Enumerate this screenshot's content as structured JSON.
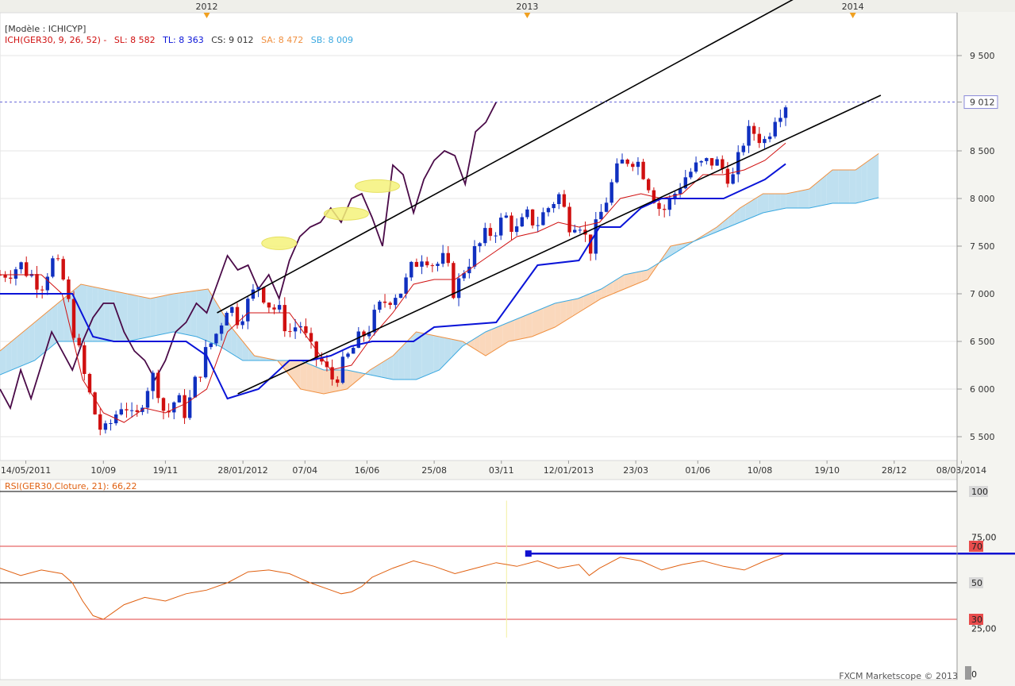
{
  "legend": {
    "model": "[Modèle : ICHICYP]",
    "ich": "ICH(GER30, 9, 26, 52) -",
    "sl": "SL: 8 582",
    "tl": "TL: 8 363",
    "cs": "CS: 9 012",
    "sa": "SA: 8 472",
    "sb": "SB: 8 009"
  },
  "colors": {
    "bull": "#1030c0",
    "bear": "#d01010",
    "tenkan": "#d01010",
    "kijun": "#0a14d8",
    "chikou": "#4a0a48",
    "senkou_a": "#f09040",
    "senkou_b": "#3aa8e0",
    "cloud_bull": "#bfe0f0",
    "cloud_bear": "#fad8bc",
    "rsi": "#e06010"
  },
  "footer": "FXCM Marketscope © 2013",
  "chart_data": [
    {
      "type": "candlestick",
      "title": "",
      "instrument": "GER30",
      "indicator": "Ichimoku (9, 26, 52)",
      "x_top_labels": [
        "2012",
        "2013",
        "2014"
      ],
      "x_tick_labels": [
        "14/05/2011",
        "10/09",
        "19/11",
        "28/01/2012",
        "07/04",
        "16/06",
        "25/08",
        "03/11",
        "12/01/2013",
        "23/03",
        "01/06",
        "10/08",
        "19/10",
        "28/12",
        "08/03/2014"
      ],
      "y_tick_labels": [
        "9 500",
        "9 012",
        "8 500",
        "8 000",
        "7 500",
        "7 000",
        "6 500",
        "6 000",
        "5 500"
      ],
      "y_range": [
        5250,
        9950
      ],
      "last_price": 9012,
      "close_path": [
        [
          0,
          7200
        ],
        [
          2,
          7300
        ],
        [
          4,
          7100
        ],
        [
          5,
          7350
        ],
        [
          6,
          7200
        ],
        [
          7,
          6700
        ],
        [
          8,
          6200
        ],
        [
          9,
          5800
        ],
        [
          10,
          5500
        ],
        [
          11,
          5700
        ],
        [
          12,
          5900
        ],
        [
          13,
          5600
        ],
        [
          14,
          6000
        ],
        [
          15,
          6150
        ],
        [
          16,
          5700
        ],
        [
          17,
          5900
        ],
        [
          18,
          5750
        ],
        [
          19,
          6100
        ],
        [
          20,
          6400
        ],
        [
          21,
          6600
        ],
        [
          22,
          6900
        ],
        [
          23,
          6750
        ],
        [
          24,
          6900
        ],
        [
          25,
          7100
        ],
        [
          26,
          6900
        ],
        [
          27,
          6800
        ],
        [
          28,
          6600
        ],
        [
          29,
          6700
        ],
        [
          30,
          6400
        ],
        [
          31,
          6300
        ],
        [
          32,
          6100
        ],
        [
          33,
          6200
        ],
        [
          34,
          6400
        ],
        [
          35,
          6550
        ],
        [
          36,
          6700
        ],
        [
          37,
          6900
        ],
        [
          38,
          7000
        ],
        [
          39,
          7050
        ],
        [
          40,
          7300
        ],
        [
          41,
          7450
        ],
        [
          42,
          7300
        ],
        [
          43,
          7350
        ],
        [
          44,
          7000
        ],
        [
          45,
          7300
        ],
        [
          46,
          7450
        ],
        [
          47,
          7600
        ],
        [
          48,
          7700
        ],
        [
          49,
          7800
        ],
        [
          50,
          7650
        ],
        [
          51,
          7800
        ],
        [
          52,
          7750
        ],
        [
          53,
          7900
        ],
        [
          54,
          8050
        ],
        [
          55,
          7750
        ],
        [
          56,
          7800
        ],
        [
          57,
          7450
        ],
        [
          58,
          7800
        ],
        [
          59,
          8100
        ],
        [
          60,
          8350
        ],
        [
          61,
          8450
        ],
        [
          62,
          8350
        ],
        [
          63,
          8100
        ],
        [
          64,
          7850
        ],
        [
          65,
          8000
        ],
        [
          66,
          8200
        ],
        [
          67,
          8300
        ],
        [
          68,
          8350
        ],
        [
          69,
          8400
        ],
        [
          70,
          8300
        ],
        [
          71,
          8200
        ],
        [
          72,
          8650
        ],
        [
          73,
          8700
        ],
        [
          74,
          8600
        ],
        [
          75,
          8900
        ],
        [
          76,
          9012
        ]
      ],
      "tenkan_sen": [
        [
          0,
          7200
        ],
        [
          4,
          7200
        ],
        [
          6,
          7000
        ],
        [
          8,
          6100
        ],
        [
          10,
          5750
        ],
        [
          12,
          5650
        ],
        [
          14,
          5800
        ],
        [
          16,
          5750
        ],
        [
          18,
          5850
        ],
        [
          20,
          6000
        ],
        [
          22,
          6600
        ],
        [
          24,
          6800
        ],
        [
          26,
          6800
        ],
        [
          28,
          6800
        ],
        [
          30,
          6500
        ],
        [
          32,
          6200
        ],
        [
          34,
          6250
        ],
        [
          36,
          6550
        ],
        [
          38,
          6800
        ],
        [
          40,
          7100
        ],
        [
          42,
          7150
        ],
        [
          44,
          7150
        ],
        [
          46,
          7300
        ],
        [
          48,
          7450
        ],
        [
          50,
          7600
        ],
        [
          52,
          7650
        ],
        [
          54,
          7750
        ],
        [
          56,
          7700
        ],
        [
          58,
          7750
        ],
        [
          60,
          8000
        ],
        [
          62,
          8050
        ],
        [
          64,
          8000
        ],
        [
          66,
          8050
        ],
        [
          68,
          8250
        ],
        [
          70,
          8250
        ],
        [
          72,
          8300
        ],
        [
          74,
          8400
        ],
        [
          76,
          8582
        ]
      ],
      "kijun_sen": [
        [
          0,
          7000
        ],
        [
          7,
          7000
        ],
        [
          9,
          6550
        ],
        [
          11,
          6500
        ],
        [
          18,
          6500
        ],
        [
          20,
          6350
        ],
        [
          22,
          5900
        ],
        [
          25,
          6000
        ],
        [
          28,
          6300
        ],
        [
          30,
          6300
        ],
        [
          32,
          6350
        ],
        [
          34,
          6450
        ],
        [
          36,
          6500
        ],
        [
          40,
          6500
        ],
        [
          42,
          6650
        ],
        [
          48,
          6700
        ],
        [
          50,
          7000
        ],
        [
          52,
          7300
        ],
        [
          56,
          7350
        ],
        [
          58,
          7700
        ],
        [
          60,
          7700
        ],
        [
          62,
          7900
        ],
        [
          64,
          8000
        ],
        [
          70,
          8000
        ],
        [
          72,
          8100
        ],
        [
          74,
          8200
        ],
        [
          76,
          8363
        ]
      ],
      "chikou_span": [
        [
          0,
          6000
        ],
        [
          1,
          5800
        ],
        [
          2,
          6200
        ],
        [
          3,
          5900
        ],
        [
          5,
          6600
        ],
        [
          6,
          6400
        ],
        [
          7,
          6200
        ],
        [
          8,
          6500
        ],
        [
          9,
          6750
        ],
        [
          10,
          6900
        ],
        [
          11,
          6900
        ],
        [
          12,
          6600
        ],
        [
          13,
          6400
        ],
        [
          14,
          6300
        ],
        [
          15,
          6100
        ],
        [
          16,
          6300
        ],
        [
          17,
          6600
        ],
        [
          18,
          6700
        ],
        [
          19,
          6900
        ],
        [
          20,
          6800
        ],
        [
          21,
          7100
        ],
        [
          22,
          7400
        ],
        [
          23,
          7250
        ],
        [
          24,
          7300
        ],
        [
          25,
          7050
        ],
        [
          26,
          7200
        ],
        [
          27,
          6950
        ],
        [
          28,
          7350
        ],
        [
          29,
          7600
        ],
        [
          30,
          7700
        ],
        [
          31,
          7750
        ],
        [
          32,
          7900
        ],
        [
          33,
          7750
        ],
        [
          34,
          8000
        ],
        [
          35,
          8050
        ],
        [
          36,
          7800
        ],
        [
          37,
          7500
        ],
        [
          38,
          8350
        ],
        [
          39,
          8250
        ],
        [
          40,
          7850
        ],
        [
          41,
          8200
        ],
        [
          42,
          8400
        ],
        [
          43,
          8500
        ],
        [
          44,
          8450
        ],
        [
          45,
          8150
        ],
        [
          46,
          8700
        ],
        [
          47,
          8800
        ],
        [
          48,
          9012
        ]
      ],
      "senkou_span_a": [
        [
          0,
          6400
        ],
        [
          3,
          6700
        ],
        [
          5,
          6900
        ],
        [
          7,
          7100
        ],
        [
          9,
          7050
        ],
        [
          11,
          7000
        ],
        [
          13,
          6950
        ],
        [
          15,
          7000
        ],
        [
          18,
          7050
        ],
        [
          20,
          6650
        ],
        [
          22,
          6350
        ],
        [
          24,
          6300
        ],
        [
          26,
          6000
        ],
        [
          28,
          5950
        ],
        [
          30,
          6000
        ],
        [
          32,
          6200
        ],
        [
          34,
          6350
        ],
        [
          36,
          6600
        ],
        [
          38,
          6550
        ],
        [
          40,
          6500
        ],
        [
          42,
          6350
        ],
        [
          44,
          6500
        ],
        [
          46,
          6550
        ],
        [
          48,
          6650
        ],
        [
          50,
          6800
        ],
        [
          52,
          6950
        ],
        [
          54,
          7050
        ],
        [
          56,
          7150
        ],
        [
          58,
          7500
        ],
        [
          60,
          7550
        ],
        [
          62,
          7700
        ],
        [
          64,
          7900
        ],
        [
          66,
          8050
        ],
        [
          68,
          8050
        ],
        [
          70,
          8100
        ],
        [
          72,
          8300
        ],
        [
          74,
          8300
        ],
        [
          76,
          8472
        ]
      ],
      "senkou_span_b": [
        [
          0,
          6150
        ],
        [
          3,
          6300
        ],
        [
          5,
          6500
        ],
        [
          7,
          6500
        ],
        [
          11,
          6500
        ],
        [
          13,
          6550
        ],
        [
          15,
          6600
        ],
        [
          17,
          6550
        ],
        [
          19,
          6450
        ],
        [
          21,
          6300
        ],
        [
          23,
          6300
        ],
        [
          26,
          6300
        ],
        [
          28,
          6200
        ],
        [
          30,
          6200
        ],
        [
          32,
          6150
        ],
        [
          34,
          6100
        ],
        [
          36,
          6100
        ],
        [
          38,
          6200
        ],
        [
          40,
          6450
        ],
        [
          42,
          6600
        ],
        [
          44,
          6700
        ],
        [
          46,
          6800
        ],
        [
          48,
          6900
        ],
        [
          50,
          6950
        ],
        [
          52,
          7050
        ],
        [
          54,
          7200
        ],
        [
          56,
          7250
        ],
        [
          58,
          7400
        ],
        [
          60,
          7550
        ],
        [
          62,
          7650
        ],
        [
          64,
          7750
        ],
        [
          66,
          7850
        ],
        [
          68,
          7900
        ],
        [
          70,
          7900
        ],
        [
          72,
          7950
        ],
        [
          74,
          7950
        ],
        [
          76,
          8009
        ]
      ],
      "channel_upper": [
        [
          21,
          6800
        ],
        [
          69,
          9600
        ]
      ],
      "channel_lower": [
        [
          23,
          5950
        ],
        [
          71,
          8850
        ]
      ]
    },
    {
      "type": "line",
      "title": "",
      "indicator_label": "RSI(GER30,Cloture, 21): 66,22",
      "last_value": 66.22,
      "y_tick_labels": [
        "100",
        "75,00",
        "70",
        "50",
        "30",
        "25,00",
        "0"
      ],
      "y_range": [
        0,
        100
      ],
      "levels": [
        30,
        50,
        70
      ],
      "rsi_path": [
        [
          0,
          58
        ],
        [
          2,
          54
        ],
        [
          4,
          57
        ],
        [
          6,
          55
        ],
        [
          7,
          50
        ],
        [
          8,
          40
        ],
        [
          9,
          32
        ],
        [
          10,
          30
        ],
        [
          11,
          34
        ],
        [
          12,
          38
        ],
        [
          14,
          42
        ],
        [
          16,
          40
        ],
        [
          18,
          44
        ],
        [
          20,
          46
        ],
        [
          22,
          50
        ],
        [
          24,
          56
        ],
        [
          26,
          57
        ],
        [
          28,
          55
        ],
        [
          30,
          50
        ],
        [
          32,
          46
        ],
        [
          33,
          44
        ],
        [
          34,
          45
        ],
        [
          35,
          48
        ],
        [
          36,
          53
        ],
        [
          38,
          58
        ],
        [
          40,
          62
        ],
        [
          42,
          59
        ],
        [
          44,
          55
        ],
        [
          46,
          58
        ],
        [
          48,
          61
        ],
        [
          50,
          59
        ],
        [
          52,
          62
        ],
        [
          54,
          58
        ],
        [
          56,
          60
        ],
        [
          57,
          54
        ],
        [
          58,
          58
        ],
        [
          60,
          64
        ],
        [
          62,
          62
        ],
        [
          64,
          57
        ],
        [
          66,
          60
        ],
        [
          68,
          62
        ],
        [
          70,
          59
        ],
        [
          72,
          57
        ],
        [
          74,
          62
        ],
        [
          76,
          66
        ]
      ],
      "resistance_line": [
        [
          30,
          66
        ],
        [
          67,
          66
        ]
      ]
    }
  ]
}
